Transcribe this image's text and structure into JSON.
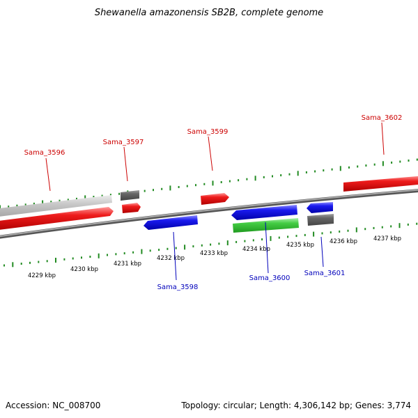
{
  "title": "Shewanella amazonensis SB2B, complete genome",
  "footer": {
    "accession": "Accession: NC_008700",
    "summary": "Topology: circular; Length: 4,306,142 bp; Genes: 3,774"
  },
  "colors": {
    "forward_label": "#cc0000",
    "reverse_label": "#0000bb",
    "tick": "#228b22",
    "backbone": "#808080",
    "gene_red": "#ee1c1c",
    "gene_blue": "#1a1aee",
    "gene_green": "#33cc33",
    "gene_gray_dark": "#666666",
    "gene_gray_light": "#c8c8c8"
  },
  "scale_labels": [
    "4229 kbp",
    "4230 kbp",
    "4231 kbp",
    "4232 kbp",
    "4233 kbp",
    "4234 kbp",
    "4235 kbp",
    "4236 kbp",
    "4237 kbp"
  ],
  "genes": [
    {
      "name": "Sama_3596",
      "strand": "forward",
      "color": "red"
    },
    {
      "name": "Sama_3597",
      "strand": "forward",
      "color": "red"
    },
    {
      "name": "Sama_3599",
      "strand": "forward",
      "color": "red"
    },
    {
      "name": "Sama_3602",
      "strand": "forward",
      "color": "red"
    },
    {
      "name": "Sama_3598",
      "strand": "reverse",
      "color": "blue"
    },
    {
      "name": "Sama_3600",
      "strand": "reverse",
      "color": "blue"
    },
    {
      "name": "Sama_3601",
      "strand": "reverse",
      "color": "blue"
    }
  ]
}
